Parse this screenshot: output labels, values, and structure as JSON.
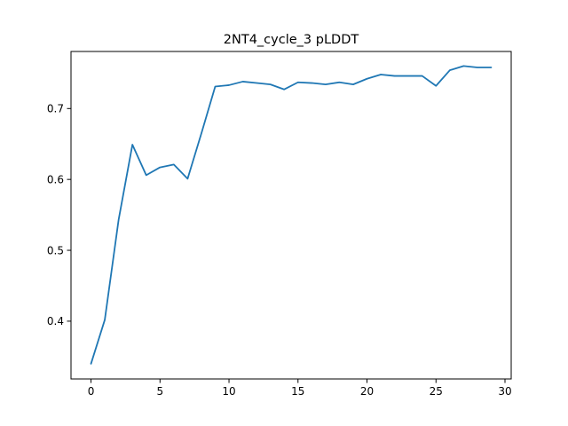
{
  "chart_data": {
    "type": "line",
    "title": "2NT4_cycle_3 pLDDT",
    "xlabel": "",
    "ylabel": "",
    "xlim": [
      -1.45,
      30.45
    ],
    "ylim": [
      0.3185,
      0.7805
    ],
    "xticks": [
      0,
      5,
      10,
      15,
      20,
      25,
      30
    ],
    "xtick_labels": [
      "0",
      "5",
      "10",
      "15",
      "20",
      "25",
      "30"
    ],
    "yticks": [
      0.4,
      0.5,
      0.6,
      0.7
    ],
    "ytick_labels": [
      "0.4",
      "0.5",
      "0.6",
      "0.7"
    ],
    "grid": false,
    "legend": "none",
    "series": [
      {
        "color": "#1f77b4",
        "x": [
          0,
          1,
          2,
          3,
          4,
          5,
          6,
          7,
          8,
          9,
          10,
          11,
          12,
          13,
          14,
          15,
          16,
          17,
          18,
          19,
          20,
          21,
          22,
          23,
          24,
          25,
          26,
          27,
          28,
          29
        ],
        "values": [
          0.34,
          0.402,
          0.543,
          0.649,
          0.606,
          0.617,
          0.621,
          0.601,
          0.665,
          0.731,
          0.733,
          0.738,
          0.736,
          0.734,
          0.727,
          0.737,
          0.736,
          0.734,
          0.737,
          0.734,
          0.742,
          0.748,
          0.746,
          0.746,
          0.746,
          0.732,
          0.754,
          0.76,
          0.758,
          0.758
        ]
      }
    ]
  }
}
